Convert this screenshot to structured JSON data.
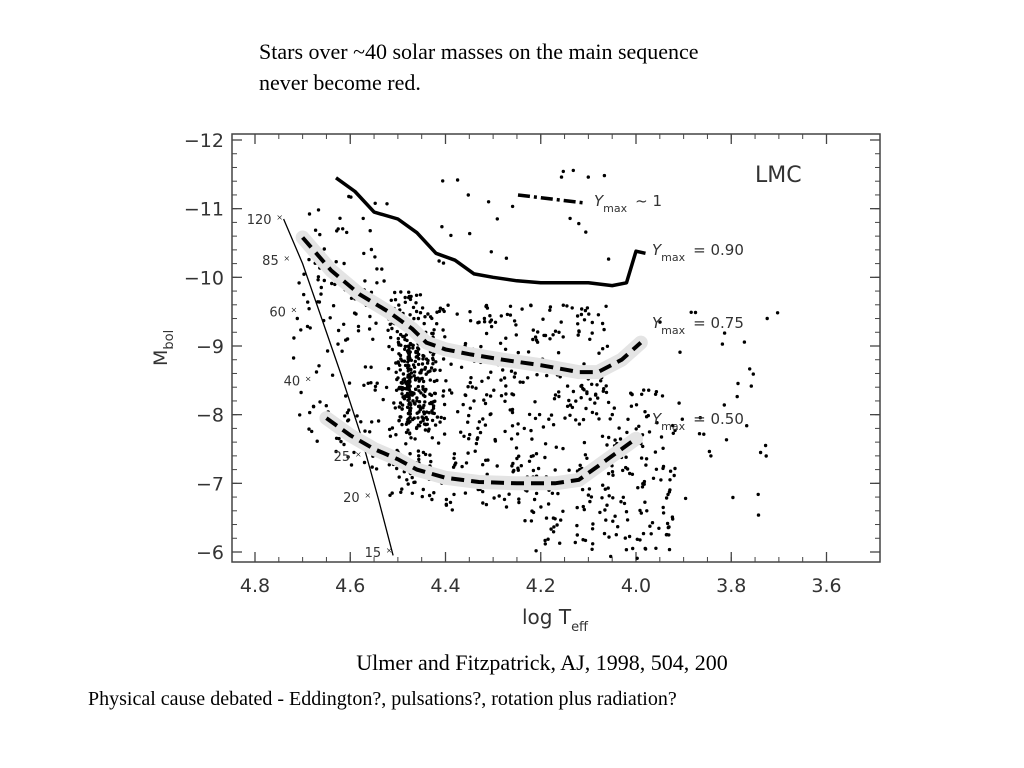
{
  "slide": {
    "title_line1": "Stars over ~40 solar masses on the main sequence",
    "title_line2": "never become red.",
    "citation": "Ulmer and Fitzpatrick, AJ, 1998, 504, 200",
    "note": "Physical cause debated - Eddington?, pulsations?, rotation plus radiation?"
  },
  "chart_data": {
    "type": "scatter",
    "panel_label": "LMC",
    "xlabel": "log T",
    "xlabel_sub": "eff",
    "ylabel": "M",
    "ylabel_sub": "bol",
    "xlim": [
      4.8,
      3.55
    ],
    "ylim": [
      -5.8,
      -12.1
    ],
    "x_axis_reversed": true,
    "y_axis_reversed": true,
    "grid": false,
    "xticks": [
      "4.8",
      "4.6",
      "4.4",
      "4.2",
      "4.0",
      "3.8",
      "3.6"
    ],
    "xtick_values": [
      4.8,
      4.6,
      4.4,
      4.2,
      4.0,
      3.8,
      3.6
    ],
    "yticks": [
      "−12",
      "−11",
      "−10",
      "−9",
      "−8",
      "−7",
      "−6"
    ],
    "ytick_values": [
      -12,
      -11,
      -10,
      -9,
      -8,
      -7,
      -6
    ],
    "series": [
      {
        "name": "Y_max ~ 1",
        "label_text": "Y",
        "label_sub": "max",
        "label_rel": "~ 1",
        "style": "solid-thick",
        "x": [
          4.63,
          4.59,
          4.55,
          4.5,
          4.46,
          4.42,
          4.38,
          4.34,
          4.3,
          4.25,
          4.2,
          4.15,
          4.1,
          4.05,
          4.02,
          4.0,
          3.98
        ],
        "y": [
          -11.45,
          -11.25,
          -10.95,
          -10.85,
          -10.65,
          -10.35,
          -10.25,
          -10.05,
          -10.0,
          -9.95,
          -9.92,
          -9.92,
          -9.92,
          -9.88,
          -9.92,
          -10.38,
          -10.35
        ]
      },
      {
        "name": "Y_max = 0.90",
        "label_text": "Y",
        "label_sub": "max",
        "label_rel": "= 0.90",
        "style": "dashed-thick",
        "x": [
          4.7,
          4.64,
          4.58,
          4.52,
          4.47,
          4.44,
          4.4,
          4.35,
          4.28,
          4.2,
          4.12,
          4.08,
          4.03,
          3.99
        ],
        "y": [
          -10.58,
          -10.1,
          -9.75,
          -9.5,
          -9.25,
          -9.05,
          -8.95,
          -8.88,
          -8.8,
          -8.72,
          -8.62,
          -8.62,
          -8.8,
          -9.05
        ]
      },
      {
        "name": "Y_max = 0.75",
        "label_text": "Y",
        "label_sub": "max",
        "label_rel": "= 0.75",
        "style": "dashed-thick",
        "x": [
          4.65,
          4.6,
          4.55,
          4.5,
          4.46,
          4.4,
          4.33,
          4.25,
          4.17,
          4.12,
          4.08,
          4.03,
          4.0
        ],
        "y": [
          -7.95,
          -7.7,
          -7.5,
          -7.35,
          -7.2,
          -7.08,
          -7.02,
          -7.0,
          -7.0,
          -7.05,
          -7.25,
          -7.5,
          -7.65
        ]
      }
    ],
    "series_label_0_50": {
      "label_text": "Y",
      "label_sub": "max",
      "label_rel": "= 0.50"
    },
    "track_line": {
      "x": [
        4.74,
        4.7,
        4.66,
        4.62,
        4.58,
        4.54,
        4.51
      ],
      "y": [
        -10.85,
        -10.2,
        -9.4,
        -8.6,
        -7.75,
        -6.75,
        -5.95
      ]
    },
    "track_masses": [
      {
        "label": "120",
        "x": 4.74,
        "y": -10.85
      },
      {
        "label": "85",
        "x": 4.725,
        "y": -10.25
      },
      {
        "label": "60",
        "x": 4.71,
        "y": -9.5
      },
      {
        "label": "40",
        "x": 4.68,
        "y": -8.5
      },
      {
        "label": "25",
        "x": 4.575,
        "y": -7.4
      },
      {
        "label": "20",
        "x": 4.555,
        "y": -6.8
      },
      {
        "label": "15",
        "x": 4.51,
        "y": -6.0
      }
    ],
    "scatter_density": [
      {
        "x_range": [
          4.72,
          4.64
        ],
        "y_range": [
          -11.0,
          -7.6
        ],
        "count": 45
      },
      {
        "x_range": [
          4.64,
          4.52
        ],
        "y_range": [
          -11.2,
          -7.2
        ],
        "count": 90
      },
      {
        "x_range": [
          4.52,
          4.44
        ],
        "y_range": [
          -9.8,
          -6.8
        ],
        "count": 150
      },
      {
        "x_range": [
          4.5,
          4.42
        ],
        "y_range": [
          -9.2,
          -7.8
        ],
        "count": 160
      },
      {
        "x_range": [
          4.44,
          4.24
        ],
        "y_range": [
          -9.6,
          -6.6
        ],
        "count": 210
      },
      {
        "x_range": [
          4.24,
          4.06
        ],
        "y_range": [
          -9.6,
          -6.0
        ],
        "count": 200
      },
      {
        "x_range": [
          4.06,
          3.92
        ],
        "y_range": [
          -8.4,
          -5.9
        ],
        "count": 110
      },
      {
        "x_range": [
          3.95,
          3.7
        ],
        "y_range": [
          -9.8,
          -6.4
        ],
        "count": 38
      },
      {
        "x_range": [
          4.45,
          4.05
        ],
        "y_range": [
          -11.6,
          -10.0
        ],
        "count": 22
      }
    ]
  }
}
